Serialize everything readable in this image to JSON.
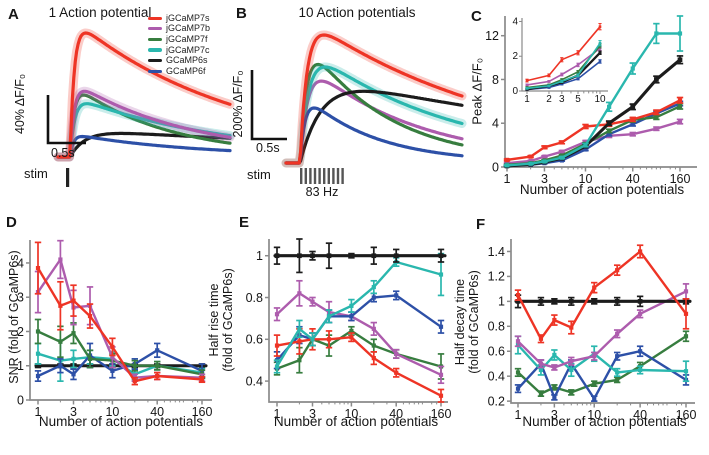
{
  "figure": {
    "background": "#ffffff",
    "legend": {
      "items": [
        {
          "label": "jGCaMP7s",
          "color": "#ee3425"
        },
        {
          "label": "jGCaMP7b",
          "color": "#ad5cad"
        },
        {
          "label": "jGCaMP7f",
          "color": "#377d3f"
        },
        {
          "label": "jGCaMP7c",
          "color": "#2ab7ae"
        },
        {
          "label": "GCaMP6s",
          "color": "#1c1c1c"
        },
        {
          "label": "GCaMP6f",
          "color": "#2d50a7"
        }
      ]
    },
    "panels": {
      "A": {
        "letter": "A",
        "title": "1 Action potential",
        "ylabel": "40% ΔF/F₀",
        "scalebar_label": "0.5s",
        "stim_label": "stim"
      },
      "B": {
        "letter": "B",
        "title": "10 Action potentials",
        "ylabel": "200% ΔF/F₀",
        "scalebar_label": "0.5s",
        "stim_label": "stim",
        "freq_label": "83 Hz"
      },
      "C": {
        "letter": "C",
        "ylabel": "Peak ΔF/F₀",
        "xlabel": "Number of action potentials"
      },
      "D": {
        "letter": "D",
        "ylabel": "SNR (fold of GCaMP6s)",
        "xlabel": "Number of action potentials"
      },
      "E": {
        "letter": "E",
        "ylabel_line1": "Half rise time",
        "ylabel_line2": "(fold of GCaMP6s)",
        "xlabel": "Number of action potentials"
      },
      "F": {
        "letter": "F",
        "ylabel_line1": "Half decay time",
        "ylabel_line2": "(fold of GCaMP6s)",
        "xlabel": "Number of action potentials"
      }
    }
  },
  "chart_data": [
    {
      "id": "A",
      "type": "line",
      "subtype": "stimulus-traces",
      "title": "1 Action potential",
      "y_scalebar": "40% ΔF/F₀",
      "x_scalebar": "0.5s",
      "stim_pulses": 1,
      "series": [
        {
          "name": "GCaMP6s",
          "color": "#1c1c1c",
          "peak": 0.19,
          "rise": 0.09,
          "decay": 2.4,
          "band": false
        },
        {
          "name": "GCaMP6f",
          "color": "#2d50a7",
          "peak": 0.165,
          "rise": 0.02,
          "decay": 0.72,
          "band": false
        },
        {
          "name": "jGCaMP7f",
          "color": "#377d3f",
          "peak": 0.5,
          "rise": 0.025,
          "decay": 0.55,
          "band": false
        },
        {
          "name": "jGCaMP7c",
          "color": "#2ab7ae",
          "peak": 0.43,
          "rise": 0.028,
          "decay": 0.88,
          "band": true
        },
        {
          "name": "jGCaMP7b",
          "color": "#ad5cad",
          "peak": 0.53,
          "rise": 0.025,
          "decay": 0.68,
          "band": true
        },
        {
          "name": "jGCaMP7s",
          "color": "#ee3425",
          "peak": 1.0,
          "rise": 0.025,
          "decay": 0.95,
          "band": true
        }
      ]
    },
    {
      "id": "B",
      "type": "line",
      "subtype": "stimulus-traces",
      "title": "10 Action potentials",
      "y_scalebar": "200% ΔF/F₀",
      "x_scalebar": "0.5s",
      "stim_pulses": 10,
      "stim_freq": "83 Hz",
      "series": [
        {
          "name": "jGCaMP7b",
          "color": "#ad5cad",
          "peak": 0.64,
          "rise": 0.045,
          "decay": 0.62,
          "band": false
        },
        {
          "name": "jGCaMP7f",
          "color": "#377d3f",
          "peak": 0.77,
          "rise": 0.04,
          "decay": 0.46,
          "band": false
        },
        {
          "name": "jGCaMP7c",
          "color": "#2ab7ae",
          "peak": 0.75,
          "rise": 0.05,
          "decay": 0.82,
          "band": true
        },
        {
          "name": "GCaMP6s",
          "color": "#1c1c1c",
          "peak": 0.56,
          "rise": 0.13,
          "decay": 2.0,
          "band": false
        },
        {
          "name": "GCaMP6f",
          "color": "#2d50a7",
          "peak": 0.43,
          "rise": 0.03,
          "decay": 0.4,
          "band": false
        },
        {
          "name": "jGCaMP7s",
          "color": "#ee3425",
          "peak": 1.0,
          "rise": 0.04,
          "decay": 1.15,
          "band": true
        }
      ]
    },
    {
      "id": "C",
      "type": "line",
      "xscale": "log",
      "title": "",
      "ylabel": "Peak ΔF/F₀",
      "xlabel": "Number of action potentials",
      "x": [
        1,
        2,
        3,
        5,
        10,
        20,
        40,
        80,
        160
      ],
      "xticks": [
        1,
        3,
        10,
        40,
        160
      ],
      "yticks": [
        0,
        4,
        8,
        12
      ],
      "ylim": [
        0,
        13.8
      ],
      "series": [
        {
          "name": "jGCaMP7b",
          "color": "#ad5cad",
          "values": [
            0.35,
            0.55,
            0.95,
            1.4,
            2.3,
            2.85,
            3.0,
            3.5,
            4.15
          ],
          "errors": [
            0.05,
            0.05,
            0.08,
            0.1,
            0.12,
            0.15,
            0.15,
            0.15,
            0.2
          ]
        },
        {
          "name": "GCaMP6f",
          "color": "#2d50a7",
          "values": [
            0.08,
            0.2,
            0.35,
            0.6,
            1.6,
            3.0,
            3.9,
            4.9,
            5.8
          ],
          "errors": [
            0.03,
            0.04,
            0.05,
            0.06,
            0.1,
            0.15,
            0.15,
            0.2,
            0.2
          ]
        },
        {
          "name": "jGCaMP7f",
          "color": "#377d3f",
          "values": [
            0.2,
            0.35,
            0.6,
            1.05,
            2.1,
            3.3,
            4.3,
            4.55,
            5.55
          ],
          "errors": [
            0.04,
            0.05,
            0.06,
            0.08,
            0.12,
            0.15,
            0.2,
            0.2,
            0.25
          ]
        },
        {
          "name": "jGCaMP7s",
          "color": "#ee3425",
          "values": [
            0.65,
            0.95,
            1.8,
            2.25,
            3.7,
            3.9,
            4.35,
            5.0,
            6.1
          ],
          "errors": [
            0.08,
            0.08,
            0.12,
            0.12,
            0.18,
            0.18,
            0.18,
            0.2,
            0.25
          ]
        },
        {
          "name": "GCaMP6s",
          "color": "#1c1c1c",
          "values": [
            0.1,
            0.25,
            0.45,
            0.8,
            1.9,
            4.0,
            5.5,
            8.0,
            9.8
          ],
          "errors": [
            0.03,
            0.04,
            0.05,
            0.07,
            0.1,
            0.2,
            0.25,
            0.3,
            0.35
          ]
        },
        {
          "name": "jGCaMP7c",
          "color": "#2ab7ae",
          "values": [
            0.15,
            0.3,
            0.5,
            0.85,
            2.0,
            5.5,
            9.0,
            12.2,
            12.2
          ],
          "errors": [
            0.04,
            0.05,
            0.06,
            0.08,
            0.15,
            0.4,
            0.5,
            0.9,
            1.6
          ]
        }
      ]
    },
    {
      "id": "C-inset",
      "type": "line",
      "xscale": "log",
      "x": [
        1,
        2,
        3,
        5,
        10
      ],
      "xticks": [
        1,
        2,
        3,
        5,
        10
      ],
      "yticks": [
        0,
        2,
        4
      ],
      "ylim": [
        0,
        4.2
      ],
      "series": [
        {
          "name": "jGCaMP7b",
          "color": "#ad5cad",
          "values": [
            0.35,
            0.55,
            0.95,
            1.5,
            2.45
          ],
          "errors": [
            0.05,
            0.05,
            0.08,
            0.1,
            0.12
          ]
        },
        {
          "name": "GCaMP6f",
          "color": "#2d50a7",
          "values": [
            0.08,
            0.2,
            0.4,
            0.7,
            1.7
          ],
          "errors": [
            0.03,
            0.04,
            0.05,
            0.06,
            0.1
          ]
        },
        {
          "name": "jGCaMP7f",
          "color": "#377d3f",
          "values": [
            0.2,
            0.35,
            0.65,
            1.1,
            2.6
          ],
          "errors": [
            0.04,
            0.05,
            0.06,
            0.08,
            0.12
          ]
        },
        {
          "name": "GCaMP6s",
          "color": "#1c1c1c",
          "values": [
            0.1,
            0.3,
            0.5,
            0.9,
            2.2
          ],
          "errors": [
            0.03,
            0.04,
            0.05,
            0.07,
            0.1
          ]
        },
        {
          "name": "jGCaMP7c",
          "color": "#2ab7ae",
          "values": [
            0.15,
            0.3,
            0.55,
            0.9,
            2.75
          ],
          "errors": [
            0.04,
            0.05,
            0.06,
            0.08,
            0.15
          ]
        },
        {
          "name": "jGCaMP7s",
          "color": "#ee3425",
          "values": [
            0.6,
            0.9,
            1.8,
            2.2,
            3.7
          ],
          "errors": [
            0.08,
            0.08,
            0.12,
            0.12,
            0.18
          ]
        }
      ]
    },
    {
      "id": "D",
      "type": "line",
      "xscale": "log",
      "ylabel": "SNR (fold of GCaMP6s)",
      "xlabel": "Number of action potentials",
      "x": [
        1,
        2,
        3,
        5,
        10,
        20,
        40,
        160
      ],
      "xticks": [
        1,
        3,
        10,
        40,
        160
      ],
      "yticks": [
        0,
        1,
        2,
        3,
        4
      ],
      "ylim": [
        0,
        4.67
      ],
      "series": [
        {
          "name": "GCaMP6s",
          "color": "#1c1c1c",
          "values": [
            1,
            1,
            1,
            1,
            1,
            1,
            1,
            1
          ],
          "errors": [
            0.05,
            0.05,
            0.05,
            0.05,
            0.05,
            0.05,
            0.05,
            0.05
          ]
        },
        {
          "name": "jGCaMP7c",
          "color": "#2ab7ae",
          "values": [
            1.35,
            1.15,
            1.2,
            1.25,
            1.2,
            0.75,
            1.0,
            0.8
          ],
          "errors": [
            0.3,
            0.6,
            0.25,
            0.2,
            0.2,
            0.15,
            0.12,
            0.12
          ]
        },
        {
          "name": "GCaMP6f",
          "color": "#2d50a7",
          "values": [
            0.7,
            1.0,
            0.75,
            1.3,
            0.85,
            1.05,
            1.45,
            0.85
          ],
          "errors": [
            0.15,
            0.2,
            0.15,
            0.35,
            0.2,
            0.15,
            0.2,
            0.2
          ]
        },
        {
          "name": "jGCaMP7f",
          "color": "#377d3f",
          "values": [
            2.0,
            1.7,
            1.95,
            1.2,
            1.15,
            1.0,
            1.0,
            0.75
          ],
          "errors": [
            0.35,
            0.45,
            0.3,
            0.25,
            0.2,
            0.15,
            0.12,
            0.12
          ]
        },
        {
          "name": "jGCaMP7b",
          "color": "#ad5cad",
          "values": [
            3.15,
            4.1,
            2.7,
            2.75,
            1.25,
            0.65,
            0.7,
            0.65
          ],
          "errors": [
            0.6,
            0.55,
            0.5,
            0.55,
            0.3,
            0.1,
            0.1,
            0.1
          ]
        },
        {
          "name": "jGCaMP7s",
          "color": "#ee3425",
          "values": [
            3.85,
            2.75,
            2.9,
            2.45,
            1.55,
            0.55,
            0.7,
            0.6
          ],
          "errors": [
            0.75,
            0.7,
            0.45,
            0.35,
            0.25,
            0.1,
            0.1,
            0.08
          ]
        }
      ]
    },
    {
      "id": "E",
      "type": "line",
      "xscale": "log",
      "ylabel": "Half rise time (fold of GCaMP6s)",
      "xlabel": "Number of action potentials",
      "x": [
        1,
        2,
        3,
        5,
        10,
        20,
        40,
        160
      ],
      "xticks": [
        1,
        3,
        10,
        40,
        160
      ],
      "yticks": [
        0.4,
        0.6,
        0.8,
        1
      ],
      "ylim": [
        0.3,
        1.08
      ],
      "series": [
        {
          "name": "jGCaMP7f",
          "color": "#377d3f",
          "values": [
            0.46,
            0.5,
            0.6,
            0.57,
            0.64,
            0.57,
            0.53,
            0.47
          ],
          "errors": [
            0.03,
            0.06,
            0.03,
            0.05,
            0.02,
            0.03,
            0.02,
            0.06
          ]
        },
        {
          "name": "jGCaMP7b",
          "color": "#ad5cad",
          "values": [
            0.72,
            0.82,
            0.78,
            0.73,
            0.71,
            0.65,
            0.53,
            0.43
          ],
          "errors": [
            0.03,
            0.06,
            0.02,
            0.05,
            0.02,
            0.03,
            0.02,
            0.04
          ]
        },
        {
          "name": "GCaMP6f",
          "color": "#2d50a7",
          "values": [
            0.5,
            0.62,
            0.6,
            0.71,
            0.71,
            0.8,
            0.81,
            0.66
          ],
          "errors": [
            0.04,
            0.04,
            0.03,
            0.03,
            0.02,
            0.02,
            0.02,
            0.03
          ]
        },
        {
          "name": "jGCaMP7s",
          "color": "#ee3425",
          "values": [
            0.57,
            0.59,
            0.6,
            0.6,
            0.61,
            0.51,
            0.44,
            0.33
          ],
          "errors": [
            0.05,
            0.06,
            0.05,
            0.04,
            0.02,
            0.03,
            0.02,
            0.03
          ]
        },
        {
          "name": "jGCaMP7c",
          "color": "#2ab7ae",
          "values": [
            0.47,
            0.65,
            0.6,
            0.71,
            0.76,
            0.85,
            0.97,
            0.91
          ],
          "errors": [
            0.03,
            0.04,
            0.03,
            0.03,
            0.03,
            0.03,
            0.02,
            0.1
          ]
        },
        {
          "name": "GCaMP6s",
          "color": "#1c1c1c",
          "values": [
            1,
            1,
            1,
            1,
            1,
            1,
            1,
            1
          ],
          "errors": [
            0.04,
            0.08,
            0.02,
            0.06,
            0.01,
            0.04,
            0.03,
            0.03
          ]
        }
      ]
    },
    {
      "id": "F",
      "type": "line",
      "xscale": "log",
      "ylabel": "Half decay time (fold of GCaMP6s)",
      "xlabel": "Number of action potentials",
      "x": [
        1,
        2,
        3,
        5,
        10,
        20,
        40,
        160
      ],
      "xticks": [
        1,
        3,
        10,
        40,
        160
      ],
      "yticks": [
        0.2,
        0.4,
        0.6,
        0.8,
        1,
        1.2,
        1.4
      ],
      "ylim": [
        0.185,
        1.5
      ],
      "series": [
        {
          "name": "jGCaMP7f",
          "color": "#377d3f",
          "values": [
            0.43,
            0.26,
            0.31,
            0.27,
            0.34,
            0.37,
            0.48,
            0.72
          ],
          "errors": [
            0.03,
            0.02,
            0.02,
            0.02,
            0.02,
            0.02,
            0.03,
            0.04
          ]
        },
        {
          "name": "GCaMP6f",
          "color": "#2d50a7",
          "values": [
            0.3,
            0.5,
            0.23,
            0.5,
            0.22,
            0.56,
            0.6,
            0.37
          ],
          "errors": [
            0.03,
            0.03,
            0.02,
            0.03,
            0.02,
            0.03,
            0.04,
            0.04
          ]
        },
        {
          "name": "jGCaMP7c",
          "color": "#2ab7ae",
          "values": [
            0.65,
            0.45,
            0.57,
            0.45,
            0.58,
            0.43,
            0.45,
            0.44
          ],
          "errors": [
            0.07,
            0.04,
            0.04,
            0.05,
            0.06,
            0.03,
            0.03,
            0.08
          ]
        },
        {
          "name": "jGCaMP7b",
          "color": "#ad5cad",
          "values": [
            0.68,
            0.5,
            0.47,
            0.52,
            0.56,
            0.74,
            0.9,
            1.08
          ],
          "errors": [
            0.04,
            0.03,
            0.02,
            0.03,
            0.03,
            0.03,
            0.03,
            0.06
          ]
        },
        {
          "name": "GCaMP6s",
          "color": "#1c1c1c",
          "values": [
            1,
            1,
            1,
            1,
            1,
            1,
            1,
            1
          ],
          "errors": [
            0.05,
            0.03,
            0.02,
            0.03,
            0.02,
            0.03,
            0.04,
            0.02
          ]
        },
        {
          "name": "jGCaMP7s",
          "color": "#ee3425",
          "values": [
            1.05,
            0.7,
            0.85,
            0.79,
            1.11,
            1.25,
            1.4,
            0.9
          ],
          "errors": [
            0.04,
            0.03,
            0.04,
            0.05,
            0.04,
            0.04,
            0.05,
            0.12
          ]
        }
      ]
    }
  ]
}
